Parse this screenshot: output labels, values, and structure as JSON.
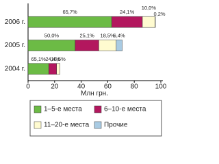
{
  "chart_data": {
    "type": "stacked-barh",
    "categories": [
      "2006 г.",
      "2005 г.",
      "2004 г."
    ],
    "series": [
      {
        "name": "1–5-е места",
        "color": "#6cbb45",
        "values": [
          63.0,
          35.5,
          15.6
        ],
        "share_labels": [
          "65,7%",
          "50,0%",
          "65,1%"
        ]
      },
      {
        "name": "6–10-е места",
        "color": "#b3175e",
        "values": [
          23.1,
          17.8,
          5.9
        ],
        "share_labels": [
          "24,1%",
          "25,1%",
          "24,4%"
        ]
      },
      {
        "name": "11–20-е места",
        "color": "#fffbd0",
        "values": [
          9.6,
          13.1,
          2.5
        ],
        "share_labels": [
          "10,0%",
          "18,5%",
          "10,5%"
        ]
      },
      {
        "name": "Прочие",
        "color": "#a9cbe3",
        "values": [
          0.2,
          4.5,
          null
        ],
        "share_labels": [
          "0,2%",
          "6,4%",
          null
        ]
      }
    ],
    "xlabel": "Млн грн.",
    "xlim": [
      0,
      100
    ],
    "xticks": [
      0,
      20,
      40,
      60,
      80,
      100
    ],
    "legend": "bottom"
  }
}
